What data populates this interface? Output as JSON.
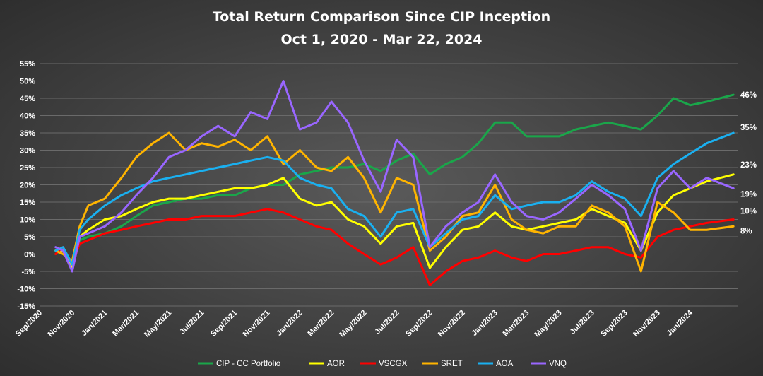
{
  "chart_data": {
    "type": "line",
    "title": "Total Return Comparison Since CIP Inception",
    "subtitle": "Oct 1, 2020 - Mar 22, 2024",
    "ylim": [
      -15,
      55
    ],
    "ytick_values": [
      -15,
      -10,
      -5,
      0,
      5,
      10,
      15,
      20,
      25,
      30,
      35,
      40,
      45,
      50,
      55
    ],
    "ytick_labels": [
      "-15%",
      "-10%",
      "-5%",
      "0%",
      "5%",
      "10%",
      "15%",
      "20%",
      "25%",
      "30%",
      "35%",
      "40%",
      "45%",
      "50%",
      "55%"
    ],
    "xlim": [
      "2020-09-01",
      "2024-03-31"
    ],
    "xtick_dates": [
      "2020-09-01",
      "2020-11-01",
      "2021-01-01",
      "2021-03-01",
      "2021-05-01",
      "2021-07-01",
      "2021-09-01",
      "2021-11-01",
      "2022-01-01",
      "2022-03-01",
      "2022-05-01",
      "2022-07-01",
      "2022-09-01",
      "2022-11-01",
      "2023-01-01",
      "2023-03-01",
      "2023-05-01",
      "2023-07-01",
      "2023-09-01",
      "2023-11-01",
      "2024-01-01"
    ],
    "xtick_labels": [
      "Sep/2020",
      "Nov/2020",
      "Jan/2021",
      "Mar/2021",
      "May/2021",
      "Jul/2021",
      "Sep/2021",
      "Nov/2021",
      "Jan/2022",
      "Mar/2022",
      "May/2022",
      "Jul/2022",
      "Sep/2022",
      "Nov/2022",
      "Jan/2023",
      "Mar/2023",
      "May/2023",
      "Jul/2023",
      "Sep/2023",
      "Nov/2023",
      "Jan/2024"
    ],
    "grid": "horizontal",
    "legend_position": "bottom",
    "end_labels": [
      {
        "series": "CIP - CC Portfolio",
        "text": "46%"
      },
      {
        "series": "AOA",
        "text": "35%"
      },
      {
        "series": "AOR",
        "text": "23%"
      },
      {
        "series": "VNQ",
        "text": "19%"
      },
      {
        "series": "VSCGX",
        "text": "10%"
      },
      {
        "series": "SRET",
        "text": "8%"
      }
    ],
    "series": [
      {
        "name": "CIP - CC Portfolio",
        "color": "#1aa64a",
        "x": [
          "2020-10-01",
          "2020-10-15",
          "2020-11-01",
          "2020-11-15",
          "2020-12-01",
          "2021-01-01",
          "2021-02-01",
          "2021-03-01",
          "2021-04-01",
          "2021-05-01",
          "2021-06-01",
          "2021-07-01",
          "2021-08-01",
          "2021-09-01",
          "2021-10-01",
          "2021-11-01",
          "2021-12-01",
          "2022-01-01",
          "2022-02-01",
          "2022-03-01",
          "2022-04-01",
          "2022-05-01",
          "2022-06-01",
          "2022-07-01",
          "2022-08-01",
          "2022-09-01",
          "2022-10-01",
          "2022-11-01",
          "2022-12-01",
          "2023-01-01",
          "2023-02-01",
          "2023-03-01",
          "2023-04-01",
          "2023-05-01",
          "2023-06-01",
          "2023-07-01",
          "2023-08-01",
          "2023-09-01",
          "2023-10-01",
          "2023-11-01",
          "2023-12-01",
          "2024-01-01",
          "2024-02-01",
          "2024-03-22"
        ],
        "y": [
          0,
          1,
          -3,
          4,
          5,
          6,
          8,
          11,
          14,
          15,
          16,
          16,
          17,
          17,
          19,
          20,
          20,
          23,
          24,
          25,
          25,
          26,
          24,
          27,
          29,
          23,
          26,
          28,
          32,
          38,
          38,
          34,
          34,
          34,
          36,
          37,
          38,
          37,
          36,
          40,
          45,
          43,
          44,
          46
        ]
      },
      {
        "name": "AOR",
        "color": "#ffff00",
        "x": [
          "2020-10-01",
          "2020-10-15",
          "2020-11-01",
          "2020-11-15",
          "2020-12-01",
          "2021-01-01",
          "2021-02-01",
          "2021-03-01",
          "2021-04-01",
          "2021-05-01",
          "2021-06-01",
          "2021-07-01",
          "2021-08-01",
          "2021-09-01",
          "2021-10-01",
          "2021-11-01",
          "2021-12-01",
          "2022-01-01",
          "2022-02-01",
          "2022-03-01",
          "2022-04-01",
          "2022-05-01",
          "2022-06-01",
          "2022-07-01",
          "2022-08-01",
          "2022-09-01",
          "2022-10-01",
          "2022-11-01",
          "2022-12-01",
          "2023-01-01",
          "2023-02-01",
          "2023-03-01",
          "2023-04-01",
          "2023-05-01",
          "2023-06-01",
          "2023-07-01",
          "2023-08-01",
          "2023-09-01",
          "2023-10-01",
          "2023-11-01",
          "2023-12-01",
          "2024-01-01",
          "2024-02-01",
          "2024-03-22"
        ],
        "y": [
          1,
          1,
          -4,
          5,
          7,
          10,
          11,
          13,
          15,
          16,
          16,
          17,
          18,
          19,
          19,
          20,
          22,
          16,
          14,
          15,
          10,
          8,
          3,
          8,
          9,
          -4,
          2,
          7,
          8,
          12,
          8,
          7,
          8,
          9,
          10,
          13,
          11,
          9,
          1,
          12,
          17,
          19,
          21,
          23
        ]
      },
      {
        "name": "VSCGX",
        "color": "#ff0000",
        "x": [
          "2020-10-01",
          "2020-10-15",
          "2020-11-01",
          "2020-11-15",
          "2020-12-01",
          "2021-01-01",
          "2021-02-01",
          "2021-03-01",
          "2021-04-01",
          "2021-05-01",
          "2021-06-01",
          "2021-07-01",
          "2021-08-01",
          "2021-09-01",
          "2021-10-01",
          "2021-11-01",
          "2021-12-01",
          "2022-01-01",
          "2022-02-01",
          "2022-03-01",
          "2022-04-01",
          "2022-05-01",
          "2022-06-01",
          "2022-07-01",
          "2022-08-01",
          "2022-09-01",
          "2022-10-01",
          "2022-11-01",
          "2022-12-01",
          "2023-01-01",
          "2023-02-01",
          "2023-03-01",
          "2023-04-01",
          "2023-05-01",
          "2023-06-01",
          "2023-07-01",
          "2023-08-01",
          "2023-09-01",
          "2023-10-01",
          "2023-11-01",
          "2023-12-01",
          "2024-01-01",
          "2024-02-01",
          "2024-03-22"
        ],
        "y": [
          0,
          2,
          -3,
          3,
          4,
          6,
          7,
          8,
          9,
          10,
          10,
          11,
          11,
          11,
          12,
          13,
          12,
          10,
          8,
          7,
          3,
          0,
          -3,
          -1,
          2,
          -9,
          -5,
          -2,
          -1,
          1,
          -1,
          -2,
          0,
          0,
          1,
          2,
          2,
          0,
          -1,
          5,
          7,
          8,
          9,
          10
        ]
      },
      {
        "name": "SRET",
        "color": "#ffb400",
        "x": [
          "2020-10-01",
          "2020-10-15",
          "2020-11-01",
          "2020-11-15",
          "2020-12-01",
          "2021-01-01",
          "2021-02-01",
          "2021-03-01",
          "2021-04-01",
          "2021-05-01",
          "2021-06-01",
          "2021-07-01",
          "2021-08-01",
          "2021-09-01",
          "2021-10-01",
          "2021-11-01",
          "2021-12-01",
          "2022-01-01",
          "2022-02-01",
          "2022-03-01",
          "2022-04-01",
          "2022-05-01",
          "2022-06-01",
          "2022-07-01",
          "2022-08-01",
          "2022-09-01",
          "2022-10-01",
          "2022-11-01",
          "2022-12-01",
          "2023-01-01",
          "2023-02-01",
          "2023-03-01",
          "2023-04-01",
          "2023-05-01",
          "2023-06-01",
          "2023-07-01",
          "2023-08-01",
          "2023-09-01",
          "2023-10-01",
          "2023-11-01",
          "2023-12-01",
          "2024-01-01",
          "2024-02-01",
          "2024-03-22"
        ],
        "y": [
          1,
          0,
          -2,
          8,
          14,
          16,
          22,
          28,
          32,
          35,
          30,
          32,
          31,
          33,
          30,
          34,
          26,
          30,
          25,
          24,
          28,
          22,
          12,
          22,
          20,
          1,
          5,
          11,
          12,
          20,
          10,
          7,
          6,
          8,
          8,
          14,
          12,
          8,
          -5,
          15,
          12,
          7,
          7,
          8
        ]
      },
      {
        "name": "AOA",
        "color": "#1ab0f0",
        "x": [
          "2020-10-01",
          "2020-10-15",
          "2020-11-01",
          "2020-11-15",
          "2020-12-01",
          "2021-01-01",
          "2021-02-01",
          "2021-03-01",
          "2021-04-01",
          "2021-05-01",
          "2021-06-01",
          "2021-07-01",
          "2021-08-01",
          "2021-09-01",
          "2021-10-01",
          "2021-11-01",
          "2021-12-01",
          "2022-01-01",
          "2022-02-01",
          "2022-03-01",
          "2022-04-01",
          "2022-05-01",
          "2022-06-01",
          "2022-07-01",
          "2022-08-01",
          "2022-09-01",
          "2022-10-01",
          "2022-11-01",
          "2022-12-01",
          "2023-01-01",
          "2023-02-01",
          "2023-03-01",
          "2023-04-01",
          "2023-05-01",
          "2023-06-01",
          "2023-07-01",
          "2023-08-01",
          "2023-09-01",
          "2023-10-01",
          "2023-11-01",
          "2023-12-01",
          "2024-01-01",
          "2024-02-01",
          "2024-03-22"
        ],
        "y": [
          1,
          2,
          -3,
          7,
          10,
          14,
          17,
          19,
          21,
          22,
          23,
          24,
          25,
          26,
          27,
          28,
          27,
          22,
          20,
          19,
          13,
          11,
          5,
          12,
          13,
          2,
          6,
          10,
          11,
          17,
          13,
          14,
          15,
          15,
          17,
          21,
          18,
          16,
          11,
          22,
          26,
          29,
          32,
          35
        ]
      },
      {
        "name": "VNQ",
        "color": "#9966ff",
        "x": [
          "2020-10-01",
          "2020-10-15",
          "2020-11-01",
          "2020-11-15",
          "2020-12-01",
          "2021-01-01",
          "2021-02-01",
          "2021-03-01",
          "2021-04-01",
          "2021-05-01",
          "2021-06-01",
          "2021-07-01",
          "2021-08-01",
          "2021-09-01",
          "2021-10-01",
          "2021-11-01",
          "2021-12-01",
          "2022-01-01",
          "2022-02-01",
          "2022-03-01",
          "2022-04-01",
          "2022-05-01",
          "2022-06-01",
          "2022-07-01",
          "2022-08-01",
          "2022-09-01",
          "2022-10-01",
          "2022-11-01",
          "2022-12-01",
          "2023-01-01",
          "2023-02-01",
          "2023-03-01",
          "2023-04-01",
          "2023-05-01",
          "2023-06-01",
          "2023-07-01",
          "2023-08-01",
          "2023-09-01",
          "2023-10-01",
          "2023-11-01",
          "2023-12-01",
          "2024-01-01",
          "2024-02-01",
          "2024-03-22"
        ],
        "y": [
          2,
          1,
          -5,
          5,
          6,
          8,
          12,
          17,
          22,
          28,
          30,
          34,
          37,
          34,
          41,
          39,
          50,
          36,
          38,
          44,
          38,
          27,
          18,
          33,
          28,
          2,
          8,
          12,
          15,
          23,
          15,
          11,
          10,
          12,
          16,
          20,
          17,
          13,
          1,
          19,
          24,
          19,
          22,
          19
        ]
      }
    ]
  }
}
